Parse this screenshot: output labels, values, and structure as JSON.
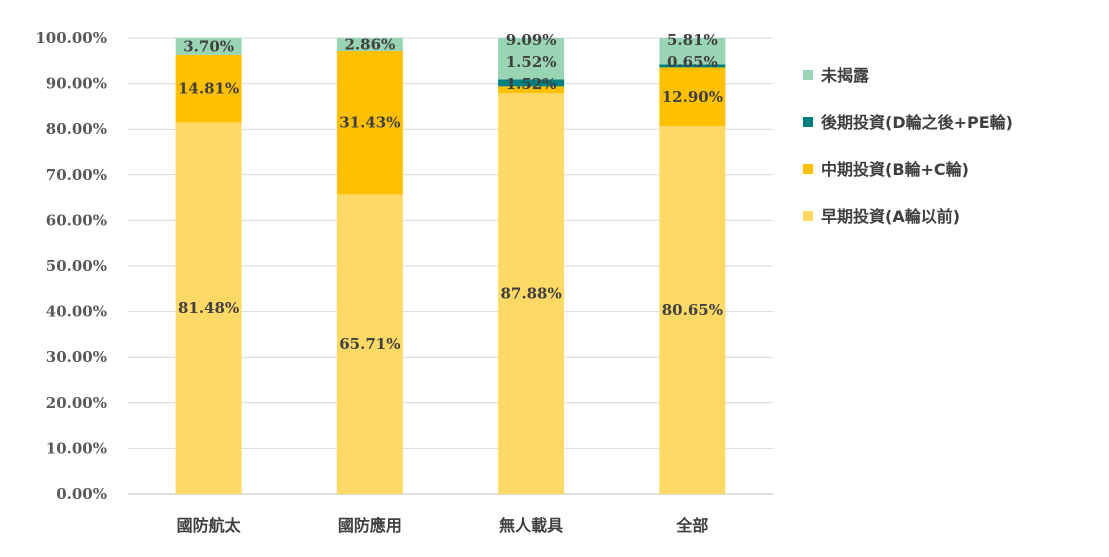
{
  "chart_data": {
    "type": "bar",
    "stacked": true,
    "categories": [
      "國防航太",
      "國防應用",
      "無人載具",
      "全部"
    ],
    "series": [
      {
        "name": "早期投資(A輪以前)",
        "color": "#FFD966",
        "values": [
          81.48,
          65.71,
          87.88,
          80.65
        ],
        "labels": [
          "81.48%",
          "65.71%",
          "87.88%",
          "80.65%"
        ]
      },
      {
        "name": "中期投資(B輪+C輪)",
        "color": "#FFC000",
        "values": [
          14.81,
          31.43,
          1.52,
          12.9
        ],
        "labels": [
          "14.81%",
          "31.43%",
          "1.52%",
          "12.90%"
        ]
      },
      {
        "name": "後期投資(D輪之後+PE輪)",
        "color": "#00807F",
        "values": [
          0,
          0,
          1.52,
          0.65
        ],
        "labels": [
          "",
          "",
          "1.52%",
          "0.65%"
        ]
      },
      {
        "name": "未揭露",
        "color": "#99D5B5",
        "values": [
          3.7,
          2.86,
          9.09,
          5.81
        ],
        "labels": [
          "3.70%",
          "2.86%",
          "9.09%",
          "5.81%"
        ]
      }
    ],
    "y_ticks": [
      "0.00%",
      "10.00%",
      "20.00%",
      "30.00%",
      "40.00%",
      "50.00%",
      "60.00%",
      "70.00%",
      "80.00%",
      "90.00%",
      "100.00%"
    ],
    "ylim": [
      0,
      100
    ],
    "grid": true,
    "legend_position": "right",
    "legend_order": [
      "未揭露",
      "後期投資(D輪之後+PE輪)",
      "中期投資(B輪+C輪)",
      "早期投資(A輪以前)"
    ]
  }
}
